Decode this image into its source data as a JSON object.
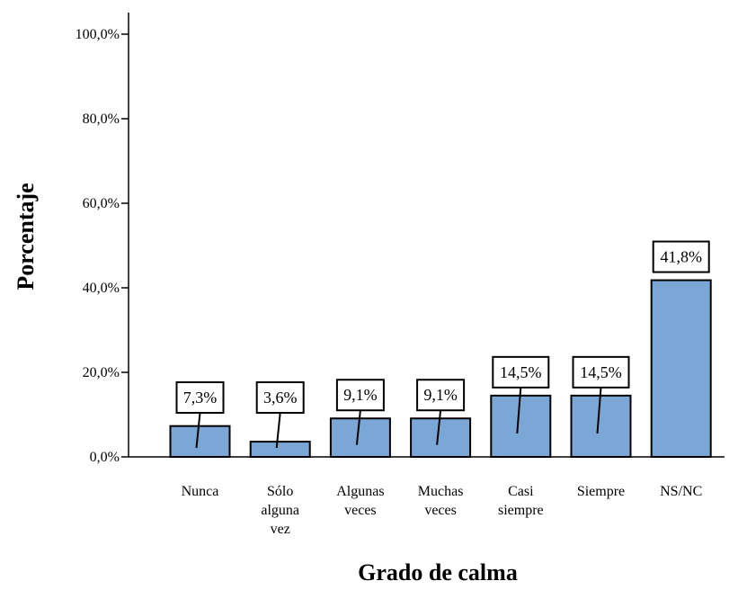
{
  "chart_data": {
    "type": "bar",
    "xlabel": "Grado de calma",
    "ylabel": "Porcentaje",
    "ylim": [
      0,
      100
    ],
    "yticks": [
      "0,0%",
      "20,0%",
      "40,0%",
      "60,0%",
      "80,0%",
      "100,0%"
    ],
    "categories": [
      [
        "Nunca"
      ],
      [
        "Sólo",
        "alguna",
        "vez"
      ],
      [
        "Algunas",
        "veces"
      ],
      [
        "Muchas",
        "veces"
      ],
      [
        "Casi",
        "siempre"
      ],
      [
        "Siempre"
      ],
      [
        "NS/NC"
      ]
    ],
    "values": [
      7.3,
      3.6,
      9.1,
      9.1,
      14.5,
      14.5,
      41.8
    ],
    "data_labels": [
      "7,3%",
      "3,6%",
      "9,1%",
      "9,1%",
      "14,5%",
      "14,5%",
      "41,8%"
    ],
    "bar_color": "#7BA7D6",
    "grid": false,
    "legend": "none"
  }
}
